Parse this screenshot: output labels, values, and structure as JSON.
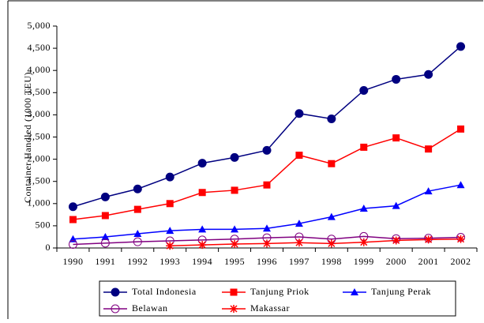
{
  "chart_data": {
    "type": "line",
    "y_label": "Container Handled (1000 TEU)",
    "categories": [
      "1990",
      "1991",
      "1992",
      "1993",
      "1994",
      "1995",
      "1996",
      "1997",
      "1998",
      "1999",
      "2000",
      "2001",
      "2002"
    ],
    "series": [
      {
        "name": "Total Indonesia",
        "color": "#000080",
        "marker": "circle",
        "values": [
          930,
          1150,
          1330,
          1600,
          1910,
          2040,
          2200,
          3030,
          2910,
          3550,
          3800,
          3910,
          4540
        ]
      },
      {
        "name": "Tanjung Priok",
        "color": "#ff0000",
        "marker": "square",
        "values": [
          640,
          730,
          870,
          1000,
          1250,
          1300,
          1420,
          2090,
          1900,
          2270,
          2480,
          2230,
          2680
        ]
      },
      {
        "name": "Tanjung Perak",
        "color": "#0000ff",
        "marker": "triangle",
        "values": [
          200,
          250,
          320,
          390,
          420,
          420,
          440,
          550,
          700,
          890,
          950,
          1280,
          1420
        ]
      },
      {
        "name": "Belawan",
        "color": "#800080",
        "marker": "open-circle",
        "values": [
          80,
          110,
          140,
          160,
          180,
          200,
          230,
          250,
          200,
          260,
          210,
          220,
          240
        ]
      },
      {
        "name": "Makassar",
        "color": "#ff0000",
        "marker": "star",
        "values": [
          null,
          null,
          null,
          50,
          70,
          90,
          100,
          120,
          100,
          130,
          170,
          190,
          200
        ]
      }
    ],
    "ylim": [
      0,
      5000
    ],
    "yticks": [
      0,
      500,
      {
        "value": 1000,
        "label": "1,000"
      },
      {
        "value": 1500,
        "label": "1,500"
      },
      {
        "value": 2000,
        "label": "2,000"
      },
      {
        "value": 2500,
        "label": "2,500"
      },
      {
        "value": 3000,
        "label": "3,000"
      },
      {
        "value": 3500,
        "label": "3,500"
      },
      {
        "value": 4000,
        "label": "4,000"
      },
      {
        "value": 4500,
        "label": "4,500"
      },
      {
        "value": 5000,
        "label": "5,000"
      }
    ],
    "grid": false
  }
}
